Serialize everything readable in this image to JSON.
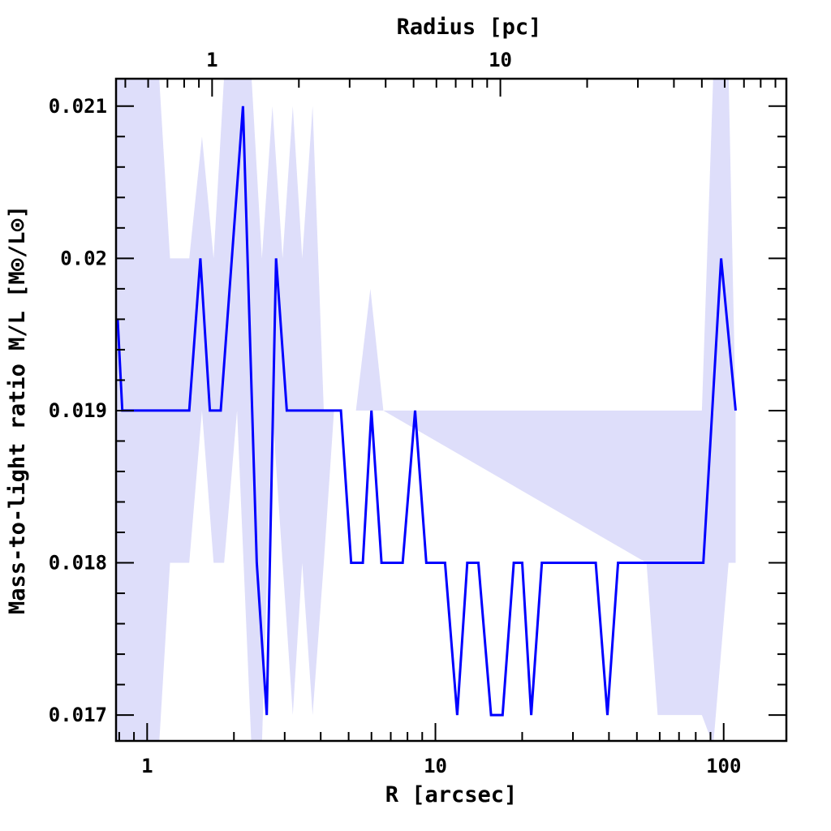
{
  "chart_data": {
    "type": "line",
    "x_scale": "log",
    "xlabel": "R [arcsec]",
    "ylabel": "Mass-to-light ratio M/L [M⊙/L⊙]",
    "top_xlabel": "Radius [pc]",
    "xlim": [
      0.78,
      165
    ],
    "ylim": [
      0.01683,
      0.02118
    ],
    "x_tick_labels": [
      "1",
      "10",
      "100"
    ],
    "x_tick_values": [
      1,
      10,
      100
    ],
    "top_x_tick_labels": [
      "1",
      "10"
    ],
    "top_x_tick_arcsec": [
      1.68,
      16.8
    ],
    "y_tick_labels": [
      "0.017",
      "0.018",
      "0.019",
      "0.02",
      "0.021"
    ],
    "y_tick_values": [
      0.017,
      0.018,
      0.019,
      0.02,
      0.021
    ],
    "grid": false,
    "series": [
      {
        "color": "#0000ff",
        "x": [
          0.79,
          0.82,
          1.4,
          1.53,
          1.65,
          1.8,
          2.15,
          2.4,
          2.6,
          2.8,
          3.05,
          4.7,
          5.1,
          5.6,
          6.0,
          6.5,
          7.7,
          8.5,
          9.3,
          10.8,
          11.9,
          12.9,
          14.1,
          15.6,
          17.1,
          18.7,
          20.0,
          21.5,
          23.4,
          36.0,
          39.5,
          43.0,
          85.0,
          98.0,
          110.0
        ],
        "y": [
          0.0196,
          0.019,
          0.019,
          0.02,
          0.019,
          0.019,
          0.021,
          0.018,
          0.017,
          0.02,
          0.019,
          0.019,
          0.018,
          0.018,
          0.019,
          0.018,
          0.018,
          0.019,
          0.018,
          0.018,
          0.017,
          0.018,
          0.018,
          0.017,
          0.017,
          0.018,
          0.018,
          0.017,
          0.018,
          0.018,
          0.017,
          0.018,
          0.018,
          0.02,
          0.019
        ]
      }
    ],
    "uncertainty_band": {
      "color": "#dedefa",
      "x": [
        0.78,
        0.9,
        1.1,
        1.2,
        1.4,
        1.55,
        1.7,
        1.85,
        2.05,
        2.3,
        2.5,
        2.72,
        2.95,
        3.2,
        3.45,
        3.75,
        4.1,
        4.45,
        5.3,
        5.95,
        6.6,
        54.0,
        59.0,
        63.0,
        84.0,
        92.0,
        104.0,
        110.0
      ],
      "lower": [
        0.0168,
        0.0168,
        0.0168,
        0.018,
        0.018,
        0.019,
        0.018,
        0.018,
        0.019,
        0.0168,
        0.0168,
        0.019,
        0.018,
        0.017,
        0.018,
        0.017,
        0.018,
        0.019,
        0.019,
        0.019,
        0.019,
        0.018,
        0.017,
        0.017,
        0.017,
        0.0168,
        0.018,
        0.018
      ],
      "upper": [
        0.0212,
        0.0212,
        0.0212,
        0.02,
        0.02,
        0.0208,
        0.02,
        0.0212,
        0.0212,
        0.0212,
        0.02,
        0.021,
        0.02,
        0.021,
        0.02,
        0.021,
        0.019,
        0.019,
        0.019,
        0.0198,
        0.019,
        0.019,
        0.019,
        0.019,
        0.019,
        0.0212,
        0.0212,
        0.019
      ]
    }
  }
}
